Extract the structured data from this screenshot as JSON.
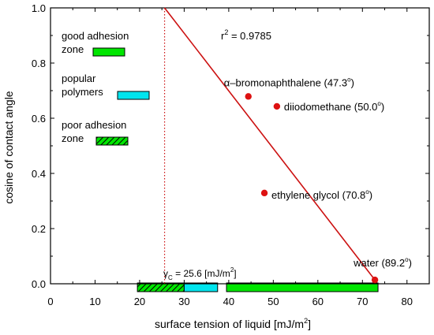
{
  "chart_data": {
    "type": "scatter",
    "xlabel": "surface tension of liquid [mJ/m",
    "xlabel_sup": "2",
    "xlabel_end": "]",
    "ylabel": "cosine of contact angle",
    "xlim": [
      0,
      85
    ],
    "ylim": [
      0.0,
      1.0
    ],
    "x_ticks": [
      0,
      10,
      20,
      30,
      40,
      50,
      60,
      70,
      80
    ],
    "x_tick_labels": [
      "0",
      "10",
      "20",
      "30",
      "40",
      "50",
      "60",
      "70",
      "80"
    ],
    "y_ticks": [
      0.0,
      0.2,
      0.4,
      0.6,
      0.8,
      1.0
    ],
    "y_tick_labels": [
      "0.0",
      "0.2",
      "0.4",
      "0.6",
      "0.8",
      "1.0"
    ],
    "grid": false,
    "points": [
      {
        "x": 44.4,
        "y": 0.679,
        "label": "α–bromonaphthalene (47.3",
        "label_sup": "o",
        "label_end": ")"
      },
      {
        "x": 50.8,
        "y": 0.643,
        "label": "diiodomethane (50.0",
        "label_sup": "o",
        "label_end": ")"
      },
      {
        "x": 48.0,
        "y": 0.329,
        "label": "ethylene glycol (70.8",
        "label_sup": "o",
        "label_end": ")"
      },
      {
        "x": 72.8,
        "y": 0.014,
        "label": "water (89.2",
        "label_sup": "o",
        "label_end": ")"
      }
    ],
    "fit_line": {
      "x1": 25.6,
      "y1": 1.0,
      "x2": 72.8,
      "y2": 0.014
    },
    "r2_label": "r",
    "r2_sup": "2",
    "r2_value": " = 0.9785",
    "critical_line": {
      "x": 25.6
    },
    "critical_label": "γ",
    "critical_sub": "C",
    "critical_value": " = 25.6 [mJ/m",
    "critical_sup": "2",
    "critical_end": "]",
    "zones": [
      {
        "name": "poor adhesion zone",
        "x_start": 19.5,
        "x_end": 30.0,
        "fill": "hatched-green"
      },
      {
        "name": "popular polymers",
        "x_start": 30.0,
        "x_end": 37.5,
        "fill": "#00e5ee"
      },
      {
        "name": "good adhesion zone",
        "x_start": 39.5,
        "x_end": 73.5,
        "fill": "#00e600"
      }
    ],
    "legend": [
      {
        "line1": "good adhesion",
        "line2": "zone",
        "fill": "#00e600"
      },
      {
        "line1": "popular",
        "line2": "polymers",
        "fill": "#00e5ee"
      },
      {
        "line1": "poor adhesion",
        "line2": "zone",
        "fill": "hatched-green"
      }
    ],
    "colors": {
      "point": "#dd1111",
      "fit_line": "#cc1111",
      "critical_line": "#cc1111",
      "green": "#00e600",
      "cyan": "#00e5ee"
    }
  }
}
